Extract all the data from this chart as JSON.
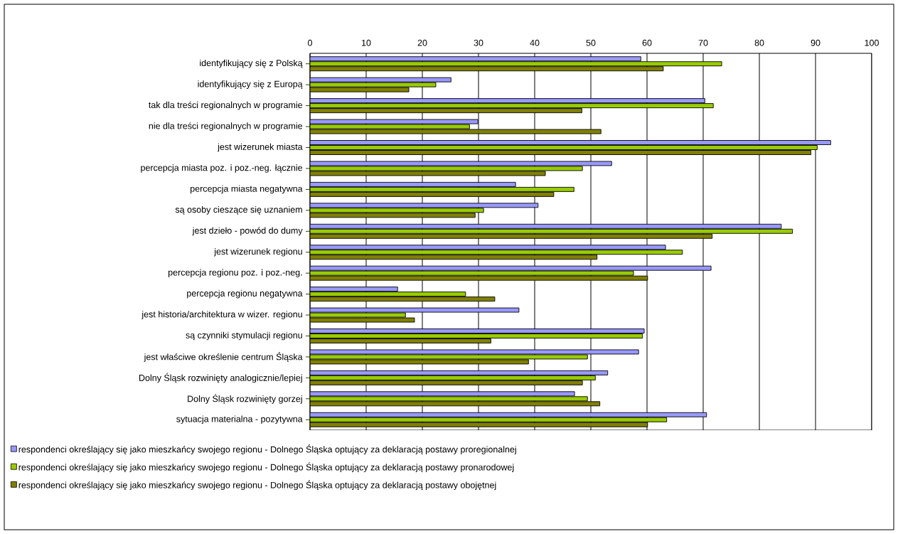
{
  "chart_data": {
    "type": "bar",
    "orientation": "horizontal",
    "categories": [
      "identyfikujący się z Polską",
      "identyfikujący się z Europą",
      "tak dla treści regionalnych w programie",
      "nie dla treści regionalnych w programie",
      "jest wizerunek miasta",
      "percepcja miasta poz. i poz.-neg. łącznie",
      "percepcja miasta negatywna",
      "są osoby cieszące się uznaniem",
      "jest dzieło - powód do dumy",
      "jest wizerunek regionu",
      "percepcja regionu poz. i poz.-neg.",
      "percepcja regionu negatywna",
      "jest historia/architektura w wizer. regionu",
      "są czynniki stymulacji regionu",
      "jest właściwe określenie centrum Śląska",
      "Dolny Śląsk rozwinięty analogicznie/lepiej",
      "Dolny Śląsk rozwinięty gorzej",
      "sytuacja materialna - pozytywna"
    ],
    "series": [
      {
        "name": "respondenci określający się jako mieszkańcy swojego regionu - Dolnego Śląska optujący za deklaracją postawy proregionalnej",
        "color": "#9999ff",
        "values": [
          58.9,
          25.1,
          70.3,
          29.9,
          92.7,
          53.7,
          36.6,
          40.6,
          83.9,
          63.3,
          71.4,
          15.6,
          37.2,
          59.5,
          58.5,
          53.0,
          47.1,
          70.6
        ]
      },
      {
        "name": "respondenci określający się jako mieszkańcy swojego regionu - Dolnego Śląska optujący za deklaracją postawy pronarodowej",
        "color": "#99cc00",
        "values": [
          73.3,
          22.4,
          71.8,
          28.4,
          90.3,
          48.5,
          47.0,
          30.9,
          85.9,
          66.3,
          57.6,
          27.7,
          17.0,
          59.2,
          49.4,
          50.8,
          49.4,
          63.5
        ]
      },
      {
        "name": "respondenci określający się jako mieszkańcy swojego regionu - Dolnego Śląska optujący za deklaracją postawy obojętnej",
        "color": "#808000",
        "values": [
          62.9,
          17.6,
          48.4,
          51.8,
          89.2,
          41.9,
          43.4,
          29.4,
          71.6,
          51.1,
          60.1,
          32.9,
          18.6,
          32.2,
          38.9,
          48.5,
          51.6,
          60.1
        ]
      }
    ],
    "xlim": [
      0,
      100
    ],
    "xticks": [
      0,
      10,
      20,
      30,
      40,
      50,
      60,
      70,
      80,
      90,
      100
    ],
    "grid": "x",
    "legend": "bottom"
  }
}
